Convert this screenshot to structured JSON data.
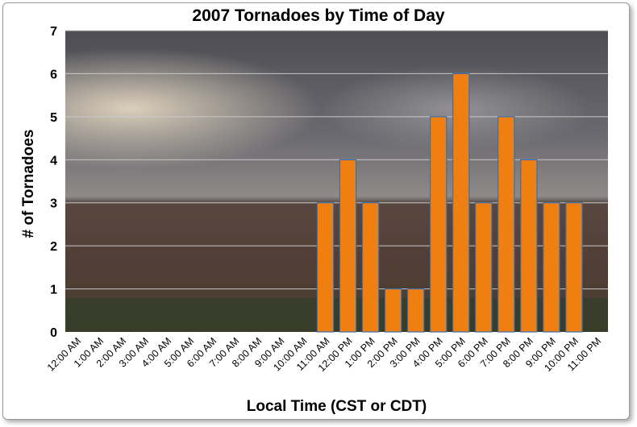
{
  "chart_data": {
    "type": "bar",
    "title": "2007 Tornadoes by Time of Day",
    "xlabel": "Local Time (CST or CDT)",
    "ylabel": "# of Tornadoes",
    "ylim": [
      0,
      7
    ],
    "yticks": [
      0,
      1,
      2,
      3,
      4,
      5,
      6,
      7
    ],
    "grid": true,
    "legend": "none",
    "bar_color": "#f07f12",
    "bar_edge_color": "#3a6fb0",
    "categories": [
      "12:00 AM",
      "1:00 AM",
      "2:00 AM",
      "3:00 AM",
      "4:00 AM",
      "5:00 AM",
      "6:00 AM",
      "7:00 AM",
      "8:00 AM",
      "9:00 AM",
      "10:00 AM",
      "11:00 AM",
      "12:00 PM",
      "1:00 PM",
      "2:00 PM",
      "3:00 PM",
      "4:00 PM",
      "5:00 PM",
      "6:00 PM",
      "7:00 PM",
      "8:00 PM",
      "9:00 PM",
      "10:00 PM",
      "11:00 PM"
    ],
    "values": [
      0,
      0,
      0,
      0,
      0,
      0,
      0,
      0,
      0,
      0,
      0,
      3,
      4,
      3,
      1,
      1,
      5,
      6,
      3,
      5,
      4,
      3,
      3,
      0
    ]
  }
}
